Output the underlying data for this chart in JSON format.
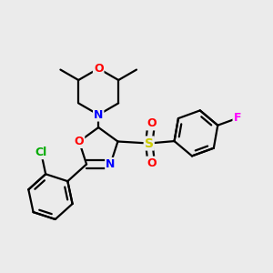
{
  "bg_color": "#ebebeb",
  "atom_colors": {
    "O": "#ff0000",
    "N": "#0000ff",
    "S": "#cccc00",
    "Cl": "#00aa00",
    "F": "#ff00ff",
    "C": "#000000"
  },
  "line_color": "#000000",
  "line_width": 1.6,
  "font_size_atom": 10,
  "font_size_small": 9,
  "font_size_tiny": 8
}
